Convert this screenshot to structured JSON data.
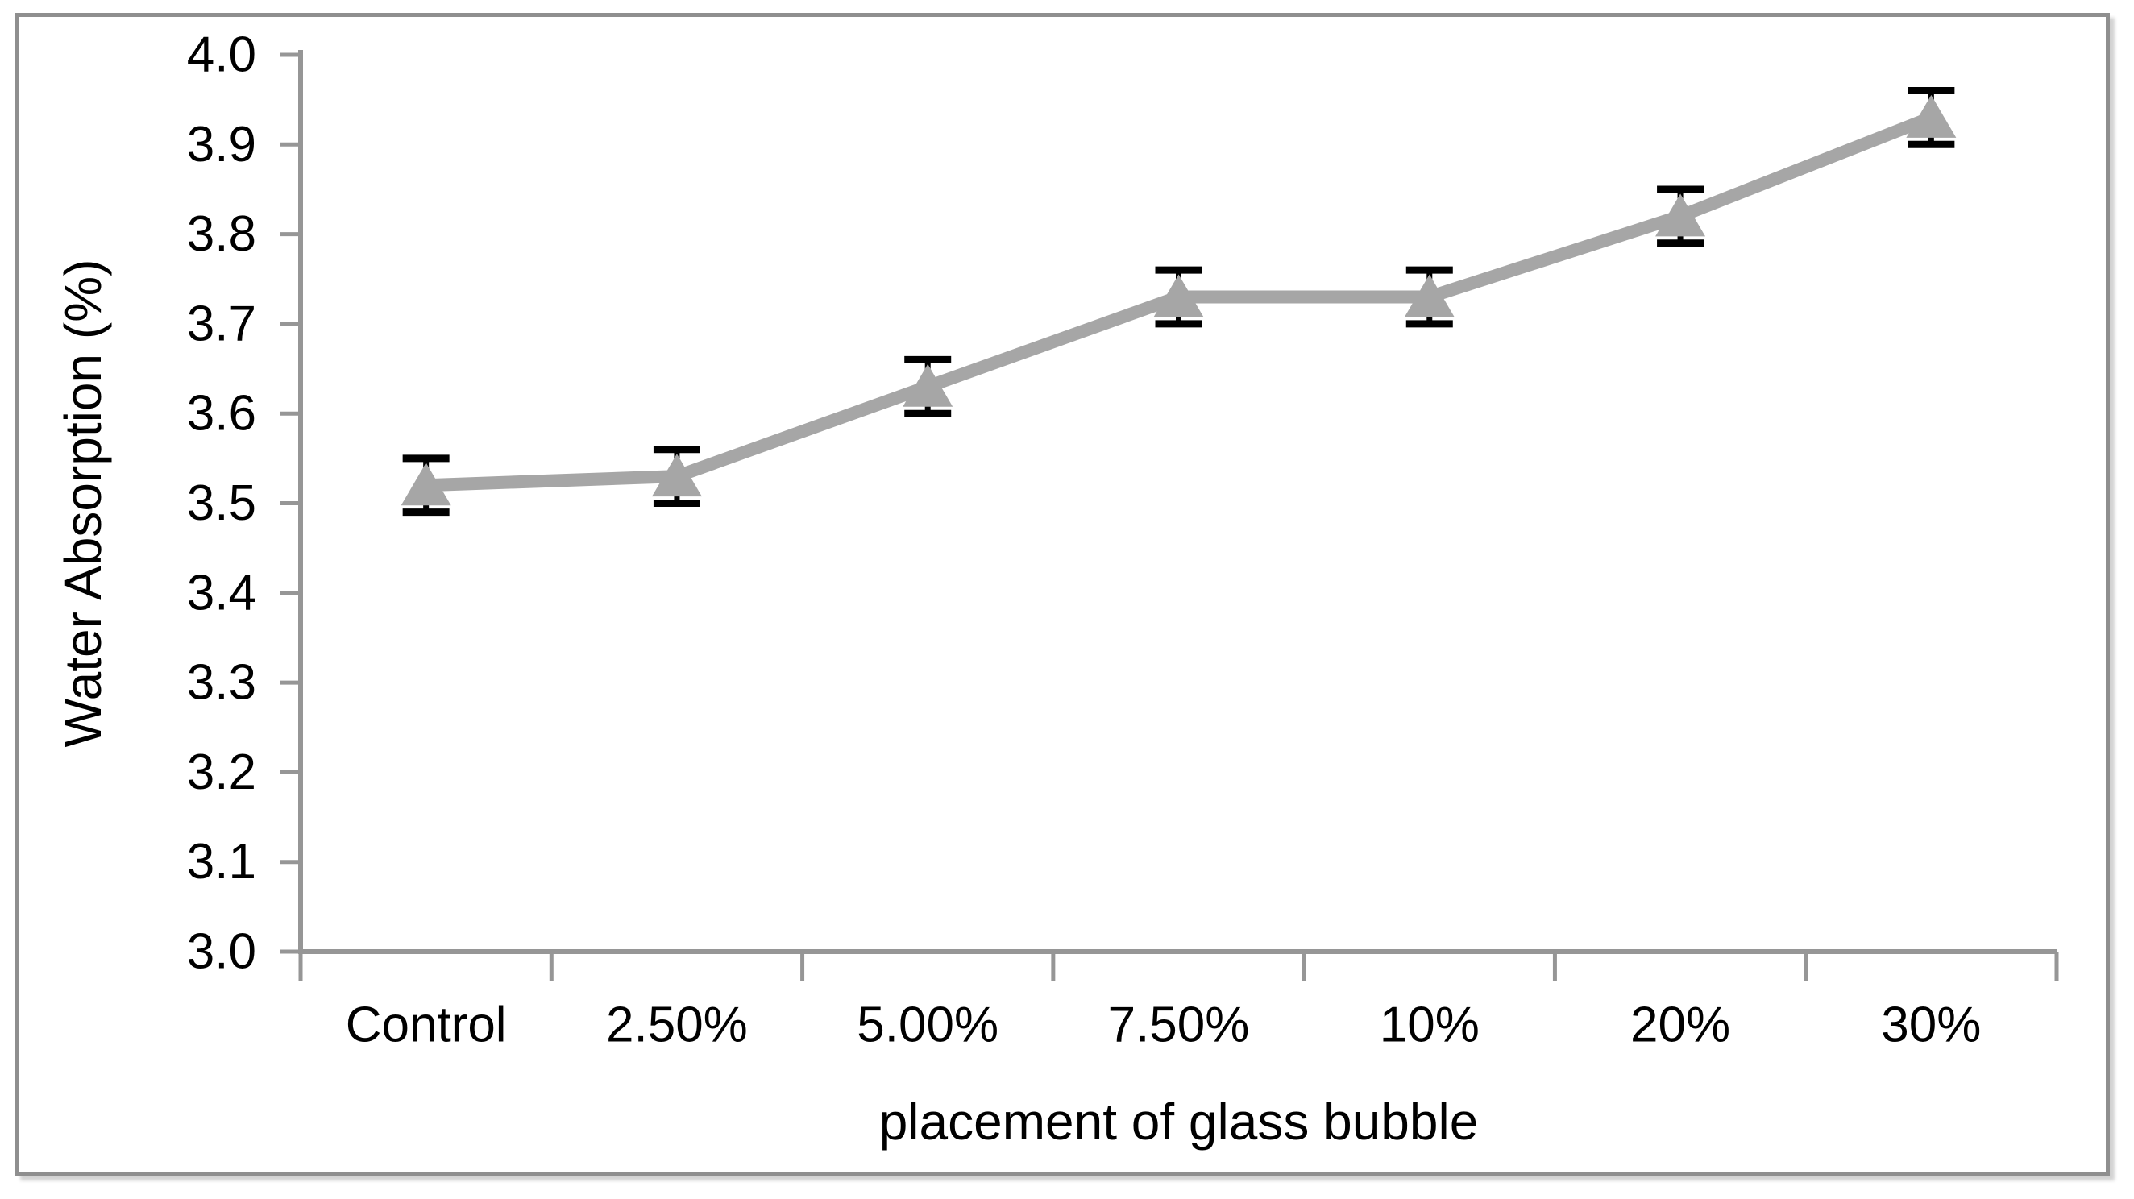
{
  "chart_data": {
    "type": "line",
    "title": "",
    "categories": [
      "Control",
      "2.50%",
      "5.00%",
      "7.50%",
      "10%",
      "20%",
      "30%"
    ],
    "series": [
      {
        "name": "Water Absorption",
        "values": [
          3.52,
          3.53,
          3.63,
          3.73,
          3.73,
          3.82,
          3.93
        ],
        "errors": [
          0.03,
          0.03,
          0.03,
          0.03,
          0.03,
          0.03,
          0.03
        ]
      }
    ],
    "xlabel": "placement of glass bubble",
    "ylabel": "Water Absorption (%)",
    "ylim": [
      3.0,
      4.0
    ],
    "ytick_step": 0.1,
    "ytick_labels": [
      "3.0",
      "3.1",
      "3.2",
      "3.3",
      "3.4",
      "3.5",
      "3.6",
      "3.7",
      "3.8",
      "3.9",
      "4.0"
    ],
    "grid": "off",
    "legend": "none",
    "marker": "triangle-up",
    "colors": {
      "series_line": "#a6a6a6",
      "marker_fill": "#a6a6a6",
      "error_bar": "#000000",
      "axis": "#969696",
      "text": "#000000",
      "frame_border": "#8f8f8f",
      "background": "#ffffff"
    }
  }
}
